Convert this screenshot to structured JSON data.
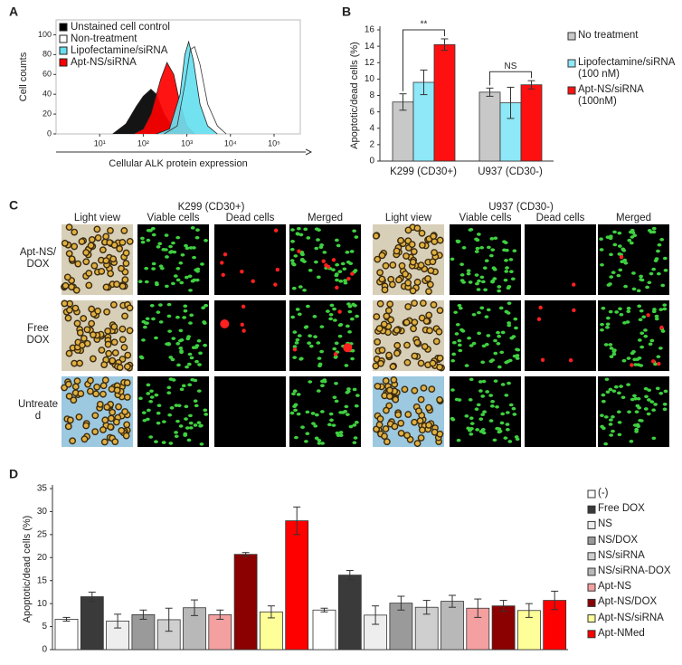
{
  "chart_data": [
    {
      "type": "area",
      "panel_label": "A",
      "xscale": "log",
      "x_label": "Cellular ALK protein expression",
      "y_label": "Cell counts",
      "xlim": [
        1,
        400000
      ],
      "ylim": [
        0,
        115
      ],
      "xticks": [
        {
          "value": 10,
          "label": "10¹"
        },
        {
          "value": 100,
          "label": "10²"
        },
        {
          "value": 1000,
          "label": "10³"
        },
        {
          "value": 10000,
          "label": "10⁴"
        },
        {
          "value": 100000,
          "label": "10⁵"
        }
      ],
      "yticks": [
        0,
        20,
        40,
        60,
        80,
        100
      ],
      "series": [
        {
          "name": "Unstained  cell control",
          "color": "#000000",
          "x": [
            20,
            40,
            70,
            100,
            150,
            200,
            300,
            500,
            800
          ],
          "values": [
            0,
            10,
            28,
            38,
            45,
            40,
            20,
            5,
            0
          ]
        },
        {
          "name": "Non-treatment",
          "color": "#ffffff",
          "x": [
            300,
            600,
            900,
            1200,
            1500,
            2000,
            3000,
            5000,
            8000
          ],
          "values": [
            0,
            8,
            50,
            85,
            88,
            70,
            30,
            8,
            0
          ]
        },
        {
          "name": "Lipofectamine/siRNA",
          "color": "#66e0f0",
          "x": [
            200,
            400,
            700,
            900,
            1100,
            1400,
            2000,
            3000,
            5000
          ],
          "values": [
            0,
            5,
            40,
            80,
            93,
            75,
            30,
            8,
            0
          ]
        },
        {
          "name": "Apt-NS/siRNA",
          "color": "#ff0000",
          "x": [
            60,
            100,
            150,
            250,
            350,
            500,
            700,
            1000,
            1500
          ],
          "values": [
            0,
            5,
            20,
            55,
            72,
            60,
            30,
            8,
            0
          ]
        }
      ]
    },
    {
      "type": "bar",
      "panel_label": "B",
      "y_label": "Apoptotic/dead cells (%)",
      "categories": [
        "K299 (CD30+)",
        "U937 (CD30-)"
      ],
      "ylim": [
        0,
        16
      ],
      "yticks": [
        0,
        2,
        4,
        6,
        8,
        10,
        12,
        14,
        16
      ],
      "annotations": [
        "**",
        "NS"
      ],
      "series": [
        {
          "name": "No treatment",
          "color": "#c8c8c8",
          "values": [
            7.2,
            8.4
          ],
          "errors": [
            1.0,
            0.5
          ]
        },
        {
          "name": "Lipofectamine/siRNA (100 nM)",
          "color": "#8ee8f8",
          "values": [
            9.6,
            7.1
          ],
          "errors": [
            1.5,
            1.9
          ]
        },
        {
          "name": "Apt-NS/siRNA (100nM)",
          "color": "#ff1010",
          "values": [
            14.2,
            9.3
          ],
          "errors": [
            0.7,
            0.5
          ]
        }
      ]
    },
    {
      "type": "bar",
      "panel_label": "D",
      "y_label": "Apoptotic/dead cells (%)",
      "categories": [
        null,
        null
      ],
      "ylim": [
        0,
        35
      ],
      "yticks": [
        0,
        5,
        10,
        15,
        20,
        25,
        30,
        35
      ],
      "series": [
        {
          "name": "(-)",
          "color": "#ffffff",
          "values": [
            6.6,
            8.6
          ],
          "errors": [
            0.4,
            0.4
          ]
        },
        {
          "name": "Free DOX",
          "color": "#3a3a3a",
          "values": [
            11.5,
            16.2
          ],
          "errors": [
            1.0,
            1.0
          ]
        },
        {
          "name": "NS",
          "color": "#eeeeee",
          "values": [
            6.2,
            7.5
          ],
          "errors": [
            1.5,
            2.0
          ]
        },
        {
          "name": "NS/DOX",
          "color": "#9a9a9a",
          "values": [
            7.6,
            10.1
          ],
          "errors": [
            1.0,
            1.5
          ]
        },
        {
          "name": "NS/siRNA",
          "color": "#cfcfcf",
          "values": [
            6.5,
            9.2
          ],
          "errors": [
            2.5,
            1.5
          ]
        },
        {
          "name": "NS/siRNA-DOX",
          "color": "#b8b8b8",
          "values": [
            9.1,
            10.5
          ],
          "errors": [
            1.7,
            1.3
          ]
        },
        {
          "name": "Apt-NS",
          "color": "#f4a0a0",
          "values": [
            7.6,
            9.0
          ],
          "errors": [
            1.0,
            2.0
          ]
        },
        {
          "name": "Apt-NS/DOX",
          "color": "#8b0000",
          "values": [
            20.7,
            9.5
          ],
          "errors": [
            0.4,
            1.2
          ]
        },
        {
          "name": "Apt-NS/siRNA",
          "color": "#ffff99",
          "values": [
            8.2,
            8.5
          ],
          "errors": [
            1.3,
            1.5
          ]
        },
        {
          "name": "Apt-NMed",
          "color": "#ff0000",
          "values": [
            28.0,
            10.7
          ],
          "errors": [
            3.0,
            2.0
          ]
        }
      ]
    }
  ],
  "micrographs": {
    "panel_label": "C",
    "groups": [
      "K299 (CD30+)",
      "U937 (CD30-)"
    ],
    "columns": [
      "Light view",
      "Viable cells",
      "Dead cells",
      "Merged"
    ],
    "rows": [
      "Apt-NS/ DOX",
      "Free DOX",
      "Untreated"
    ]
  }
}
